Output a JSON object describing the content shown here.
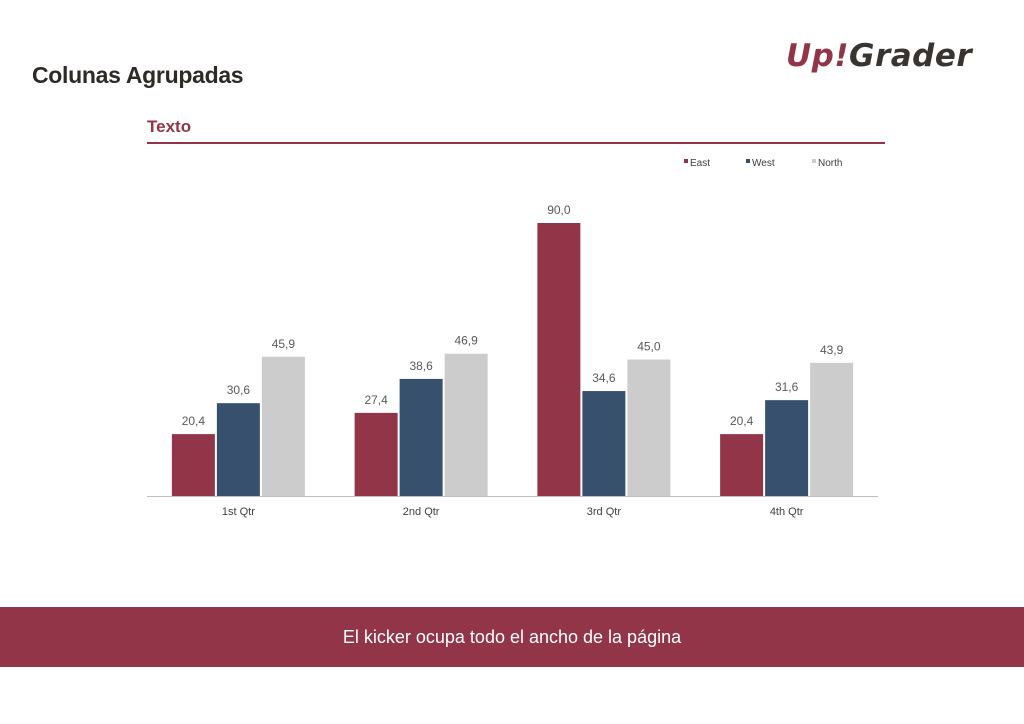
{
  "page": {
    "title": "Colunas Agrupadas",
    "section_title": "Texto",
    "kicker": "El kicker ocupa todo el ancho de la página"
  },
  "logo": {
    "up": "Up",
    "bang": "!",
    "grader": "Grader"
  },
  "colors": {
    "accent": "#933548",
    "East": "#933548",
    "West": "#36506e",
    "North": "#cccccc",
    "axis": "#bfbfbf",
    "label": "#595959"
  },
  "chart_data": {
    "type": "bar",
    "categories": [
      "1st Qtr",
      "2nd Qtr",
      "3rd Qtr",
      "4th Qtr"
    ],
    "series": [
      {
        "name": "East",
        "values": [
          20.4,
          27.4,
          90.0,
          20.4
        ],
        "labels": [
          "20,4",
          "27,4",
          "90,0",
          "20,4"
        ]
      },
      {
        "name": "West",
        "values": [
          30.6,
          38.6,
          34.6,
          31.6
        ],
        "labels": [
          "30,6",
          "38,6",
          "34,6",
          "31,6"
        ]
      },
      {
        "name": "North",
        "values": [
          45.9,
          46.9,
          45.0,
          43.9
        ],
        "labels": [
          "45,9",
          "46,9",
          "45,0",
          "43,9"
        ]
      }
    ],
    "title": "",
    "xlabel": "",
    "ylabel": "",
    "ylim": [
      0,
      90
    ],
    "grid": false,
    "legend": "top-right"
  }
}
